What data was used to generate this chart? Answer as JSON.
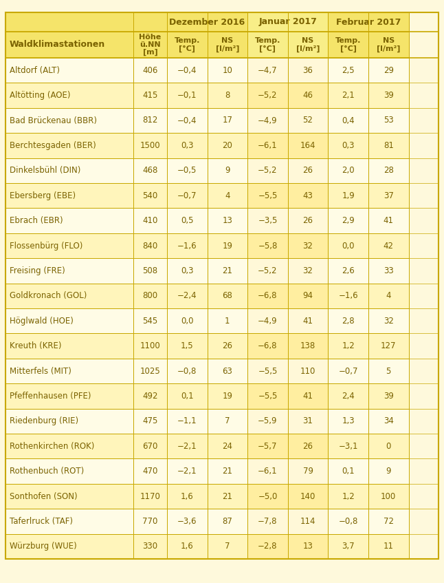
{
  "background_color": "#FEF9DC",
  "header_bg": "#F5E46A",
  "header_bg2": "#F8EE88",
  "row_bg1": "#FFFCE8",
  "row_bg2": "#FFF5C0",
  "col_bg_mid1": "#FFF0B0",
  "col_bg_mid2": "#FFFAD8",
  "text_color": "#7A6200",
  "border_color": "#C8A800",
  "month_headers": [
    "Dezember 2016",
    "Januar 2017",
    "Februar 2017"
  ],
  "sub_headers": [
    "Temp.\n[°C]",
    "NS\n[l/m²]",
    "Temp.\n[°C]",
    "NS\n[l/m²]",
    "Temp.\n[°C]",
    "NS\n[l/m²]"
  ],
  "rows": [
    [
      "Altdorf (ALT)",
      "406",
      "−0,4",
      "10",
      "−4,7",
      "36",
      "2,5",
      "29"
    ],
    [
      "Altötting (AOE)",
      "415",
      "−0,1",
      "8",
      "−5,2",
      "46",
      "2,1",
      "39"
    ],
    [
      "Bad Brückenau (BBR)",
      "812",
      "−0,4",
      "17",
      "−4,9",
      "52",
      "0,4",
      "53"
    ],
    [
      "Berchtesgaden (BER)",
      "1500",
      "0,3",
      "20",
      "−6,1",
      "164",
      "0,3",
      "81"
    ],
    [
      "Dinkelsbühl (DIN)",
      "468",
      "−0,5",
      "9",
      "−5,2",
      "26",
      "2,0",
      "28"
    ],
    [
      "Ebersberg (EBE)",
      "540",
      "−0,7",
      "4",
      "−5,5",
      "43",
      "1,9",
      "37"
    ],
    [
      "Ebrach (EBR)",
      "410",
      "0,5",
      "13",
      "−3,5",
      "26",
      "2,9",
      "41"
    ],
    [
      "Flossenbürg (FLO)",
      "840",
      "−1,6",
      "19",
      "−5,8",
      "32",
      "0,0",
      "42"
    ],
    [
      "Freising (FRE)",
      "508",
      "0,3",
      "21",
      "−5,2",
      "32",
      "2,6",
      "33"
    ],
    [
      "Goldkronach (GOL)",
      "800",
      "−2,4",
      "68",
      "−6,8",
      "94",
      "−1,6",
      "4"
    ],
    [
      "Höglwald (HOE)",
      "545",
      "0,0",
      "1",
      "−4,9",
      "41",
      "2,8",
      "32"
    ],
    [
      "Kreuth (KRE)",
      "1100",
      "1,5",
      "26",
      "−6,8",
      "138",
      "1,2",
      "127"
    ],
    [
      "Mitterfels (MIT)",
      "1025",
      "−0,8",
      "63",
      "−5,5",
      "110",
      "−0,7",
      "5"
    ],
    [
      "Pfeffenhausen (PFE)",
      "492",
      "0,1",
      "19",
      "−5,5",
      "41",
      "2,4",
      "39"
    ],
    [
      "Riedenburg (RIE)",
      "475",
      "−1,1",
      "7",
      "−5,9",
      "31",
      "1,3",
      "34"
    ],
    [
      "Rothenkirchen (ROK)",
      "670",
      "−2,1",
      "24",
      "−5,7",
      "26",
      "−3,1",
      "0"
    ],
    [
      "Rothenbuch (ROT)",
      "470",
      "−2,1",
      "21",
      "−6,1",
      "79",
      "0,1",
      "9"
    ],
    [
      "Sonthofen (SON)",
      "1170",
      "1,6",
      "21",
      "−5,0",
      "140",
      "1,2",
      "100"
    ],
    [
      "Taferlruck (TAF)",
      "770",
      "−3,6",
      "87",
      "−7,8",
      "114",
      "−0,8",
      "72"
    ],
    [
      "Würzburg (WUE)",
      "330",
      "1,6",
      "7",
      "−2,8",
      "13",
      "3,7",
      "11"
    ]
  ],
  "fig_width": 6.46,
  "fig_height": 8.47,
  "dpi": 100
}
